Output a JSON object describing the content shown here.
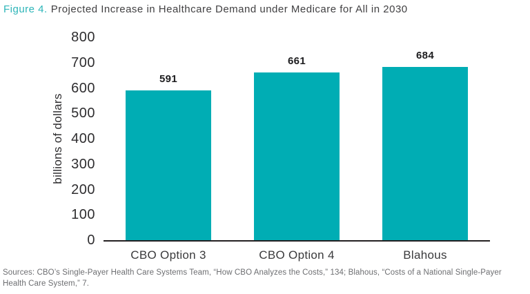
{
  "title": {
    "figure_label": "Figure 4.",
    "text": "Projected Increase in Healthcare Demand under Medicare for All in 2030"
  },
  "chart_data": {
    "type": "bar",
    "categories": [
      "CBO Option 3",
      "CBO Option 4",
      "Blahous"
    ],
    "values": [
      591,
      661,
      684
    ],
    "value_labels": [
      "591",
      "661",
      "684"
    ],
    "title": "Projected Increase in Healthcare Demand under Medicare for All in 2030",
    "xlabel": "",
    "ylabel": "billions of dollars",
    "ylim": [
      0,
      800
    ],
    "yticks": [
      0,
      100,
      200,
      300,
      400,
      500,
      600,
      700,
      800
    ],
    "grid": false,
    "legend": false,
    "bar_color": "#00adb4",
    "axis_line_color": "#231f20"
  },
  "footer": {
    "sources": "Sources: CBO’s Single-Payer Health Care Systems Team, “How CBO Analyzes the Costs,” 134; Blahous, “Costs of a National Single-Payer Health Care System,” 7."
  }
}
